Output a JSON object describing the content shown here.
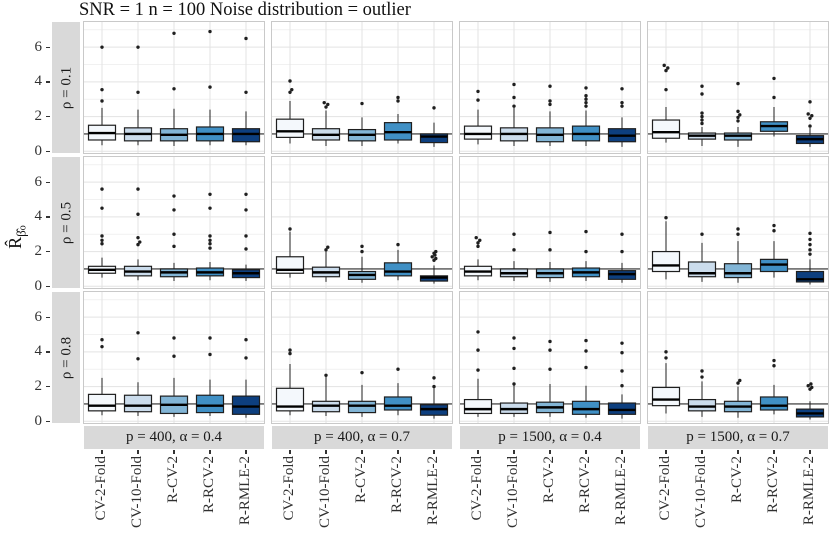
{
  "figure": {
    "title": "SNR = 1 n = 100 Noise distribution = outlier",
    "ylabel": {
      "base": "R̂",
      "sub_beta": "β̂",
      "sub_o": "o"
    }
  },
  "chart_data": {
    "type": "boxplot",
    "title": "SNR = 1 n = 100 Noise distribution = outlier",
    "ylabel": "R̂_β̂o",
    "facet_rows": [
      "ρ = 0.1",
      "ρ = 0.5",
      "ρ = 0.8"
    ],
    "facet_cols": [
      "p = 400, α = 0.4",
      "p = 400, α = 0.7",
      "p = 1500, α = 0.4",
      "p = 1500, α = 0.7"
    ],
    "categories": [
      "CV-2-Fold",
      "CV-10-Fold",
      "R-CV-2",
      "R-RCV-2",
      "R-RMLE-2"
    ],
    "yticks": [
      0,
      2,
      4,
      6
    ],
    "y_minor": [
      1,
      3,
      5,
      7
    ],
    "ylim": [
      -0.1,
      7.45
    ],
    "reference_line": 1,
    "legend": "none",
    "grid": true,
    "box_fill_colors": [
      "#F4F8FC",
      "#CBDCEC",
      "#82B5D6",
      "#4090C5",
      "#0D3F7F"
    ],
    "colors": {
      "strip_bg": "#D9D9D9",
      "grid_major": "#E3E3E3",
      "grid_minor": "#F1F1F1",
      "panel_border": "#C9C9C9",
      "box_stroke": "#1F1F1F",
      "ref_line": "#2B2B2B"
    },
    "panels": [
      {
        "row": "ρ = 0.1",
        "col": "p = 400, α = 0.4",
        "boxes": [
          {
            "whisker_low": 0.35,
            "q1": 0.65,
            "median": 1.05,
            "q3": 1.5,
            "whisker_high": 2.5,
            "outliers": [
              2.9,
              3.55,
              6.0
            ]
          },
          {
            "whisker_low": 0.35,
            "q1": 0.6,
            "median": 1.0,
            "q3": 1.35,
            "whisker_high": 2.4,
            "outliers": [
              3.4,
              6.0
            ]
          },
          {
            "whisker_low": 0.3,
            "q1": 0.6,
            "median": 0.95,
            "q3": 1.3,
            "whisker_high": 2.45,
            "outliers": [
              3.6,
              6.8
            ]
          },
          {
            "whisker_low": 0.35,
            "q1": 0.6,
            "median": 1.0,
            "q3": 1.4,
            "whisker_high": 2.4,
            "outliers": [
              3.7,
              6.9
            ]
          },
          {
            "whisker_low": 0.35,
            "q1": 0.55,
            "median": 1.0,
            "q3": 1.3,
            "whisker_high": 2.3,
            "outliers": [
              3.4,
              6.5
            ]
          }
        ]
      },
      {
        "row": "ρ = 0.1",
        "col": "p = 400, α = 0.7",
        "boxes": [
          {
            "whisker_low": 0.45,
            "q1": 0.8,
            "median": 1.15,
            "q3": 1.85,
            "whisker_high": 2.9,
            "outliers": [
              3.4,
              3.55,
              4.05
            ]
          },
          {
            "whisker_low": 0.3,
            "q1": 0.65,
            "median": 0.95,
            "q3": 1.3,
            "whisker_high": 2.35,
            "outliers": [
              2.55,
              2.7,
              2.8
            ]
          },
          {
            "whisker_low": 0.3,
            "q1": 0.6,
            "median": 0.95,
            "q3": 1.25,
            "whisker_high": 1.95,
            "outliers": [
              2.75
            ]
          },
          {
            "whisker_low": 0.45,
            "q1": 0.65,
            "median": 1.1,
            "q3": 1.65,
            "whisker_high": 2.15,
            "outliers": [
              2.9,
              3.1
            ]
          },
          {
            "whisker_low": 0.25,
            "q1": 0.5,
            "median": 0.85,
            "q3": 1.0,
            "whisker_high": 1.65,
            "outliers": [
              2.5
            ]
          }
        ]
      },
      {
        "row": "ρ = 0.1",
        "col": "p = 1500, α = 0.4",
        "boxes": [
          {
            "whisker_low": 0.4,
            "q1": 0.7,
            "median": 1.0,
            "q3": 1.45,
            "whisker_high": 2.4,
            "outliers": [
              2.95,
              3.45
            ]
          },
          {
            "whisker_low": 0.3,
            "q1": 0.6,
            "median": 1.0,
            "q3": 1.35,
            "whisker_high": 2.5,
            "outliers": [
              2.6,
              3.1,
              3.85
            ]
          },
          {
            "whisker_low": 0.3,
            "q1": 0.55,
            "median": 0.95,
            "q3": 1.35,
            "whisker_high": 2.3,
            "outliers": [
              2.7,
              2.9,
              3.75
            ]
          },
          {
            "whisker_low": 0.3,
            "q1": 0.6,
            "median": 1.0,
            "q3": 1.45,
            "whisker_high": 2.35,
            "outliers": [
              2.6,
              2.8,
              3.0,
              3.2,
              3.65
            ]
          },
          {
            "whisker_low": 0.25,
            "q1": 0.55,
            "median": 0.9,
            "q3": 1.3,
            "whisker_high": 1.95,
            "outliers": [
              2.6,
              2.8,
              3.6
            ]
          }
        ]
      },
      {
        "row": "ρ = 0.1",
        "col": "p = 1500, α = 0.7",
        "boxes": [
          {
            "whisker_low": 0.5,
            "q1": 0.75,
            "median": 1.1,
            "q3": 1.8,
            "whisker_high": 2.55,
            "outliers": [
              3.55,
              4.65,
              4.8,
              4.95
            ]
          },
          {
            "whisker_low": 0.3,
            "q1": 0.7,
            "median": 0.9,
            "q3": 1.05,
            "whisker_high": 1.4,
            "outliers": [
              1.6,
              1.8,
              2.0,
              2.2,
              3.3,
              3.75
            ]
          },
          {
            "whisker_low": 0.25,
            "q1": 0.65,
            "median": 0.9,
            "q3": 1.05,
            "whisker_high": 1.4,
            "outliers": [
              1.75,
              1.95,
              2.1,
              2.3,
              3.9
            ]
          },
          {
            "whisker_low": 0.85,
            "q1": 1.15,
            "median": 1.45,
            "q3": 1.7,
            "whisker_high": 2.55,
            "outliers": [
              3.1,
              4.2
            ]
          },
          {
            "whisker_low": 0.25,
            "q1": 0.45,
            "median": 0.7,
            "q3": 0.9,
            "whisker_high": 1.35,
            "outliers": [
              1.45,
              1.9,
              2.05,
              2.15,
              2.85
            ]
          }
        ]
      },
      {
        "row": "ρ = 0.5",
        "col": "p = 400, α = 0.4",
        "boxes": [
          {
            "whisker_low": 0.5,
            "q1": 0.75,
            "median": 0.95,
            "q3": 1.15,
            "whisker_high": 1.65,
            "outliers": [
              2.45,
              2.65,
              2.9,
              4.5,
              5.6
            ]
          },
          {
            "whisker_low": 0.35,
            "q1": 0.6,
            "median": 0.85,
            "q3": 1.15,
            "whisker_high": 1.55,
            "outliers": [
              2.4,
              2.55,
              2.8,
              4.15,
              5.6
            ]
          },
          {
            "whisker_low": 0.3,
            "q1": 0.55,
            "median": 0.8,
            "q3": 1.0,
            "whisker_high": 1.35,
            "outliers": [
              2.3,
              3.0,
              4.4,
              5.2
            ]
          },
          {
            "whisker_low": 0.35,
            "q1": 0.6,
            "median": 0.8,
            "q3": 1.05,
            "whisker_high": 1.4,
            "outliers": [
              2.2,
              2.45,
              2.65,
              2.9,
              4.5,
              5.3
            ]
          },
          {
            "whisker_low": 0.3,
            "q1": 0.5,
            "median": 0.75,
            "q3": 0.95,
            "whisker_high": 1.25,
            "outliers": [
              2.15,
              2.9,
              4.4,
              5.3
            ]
          }
        ]
      },
      {
        "row": "ρ = 0.5",
        "col": "p = 400, α = 0.7",
        "boxes": [
          {
            "whisker_low": 0.5,
            "q1": 0.75,
            "median": 0.95,
            "q3": 1.7,
            "whisker_high": 3.15,
            "outliers": [
              3.3
            ]
          },
          {
            "whisker_low": 0.25,
            "q1": 0.55,
            "median": 0.8,
            "q3": 1.1,
            "whisker_high": 2.0,
            "outliers": [
              2.1,
              2.25
            ]
          },
          {
            "whisker_low": 0.2,
            "q1": 0.4,
            "median": 0.65,
            "q3": 0.85,
            "whisker_high": 1.7,
            "outliers": [
              2.0,
              2.3
            ]
          },
          {
            "whisker_low": 0.35,
            "q1": 0.6,
            "median": 0.85,
            "q3": 1.35,
            "whisker_high": 2.1,
            "outliers": [
              2.4
            ]
          },
          {
            "whisker_low": 0.15,
            "q1": 0.3,
            "median": 0.5,
            "q3": 0.6,
            "whisker_high": 1.2,
            "outliers": [
              1.5,
              1.6,
              1.7,
              1.8,
              1.9,
              2.0
            ]
          }
        ]
      },
      {
        "row": "ρ = 0.5",
        "col": "p = 1500, α = 0.4",
        "boxes": [
          {
            "whisker_low": 0.35,
            "q1": 0.6,
            "median": 0.85,
            "q3": 1.15,
            "whisker_high": 1.55,
            "outliers": [
              2.3,
              2.5,
              2.65,
              2.8
            ]
          },
          {
            "whisker_low": 0.3,
            "q1": 0.55,
            "median": 0.75,
            "q3": 1.0,
            "whisker_high": 1.45,
            "outliers": [
              2.1,
              3.0
            ]
          },
          {
            "whisker_low": 0.25,
            "q1": 0.5,
            "median": 0.75,
            "q3": 1.0,
            "whisker_high": 1.4,
            "outliers": [
              2.1,
              3.1
            ]
          },
          {
            "whisker_low": 0.3,
            "q1": 0.55,
            "median": 0.8,
            "q3": 1.05,
            "whisker_high": 1.45,
            "outliers": [
              2.0,
              3.15
            ]
          },
          {
            "whisker_low": 0.2,
            "q1": 0.4,
            "median": 0.7,
            "q3": 0.9,
            "whisker_high": 1.35,
            "outliers": [
              2.0,
              3.0
            ]
          }
        ]
      },
      {
        "row": "ρ = 0.5",
        "col": "p = 1500, α = 0.7",
        "boxes": [
          {
            "whisker_low": 0.4,
            "q1": 0.85,
            "median": 1.2,
            "q3": 2.0,
            "whisker_high": 3.75,
            "outliers": [
              3.95
            ]
          },
          {
            "whisker_low": 0.25,
            "q1": 0.55,
            "median": 0.75,
            "q3": 1.4,
            "whisker_high": 2.5,
            "outliers": [
              3.0
            ]
          },
          {
            "whisker_low": 0.2,
            "q1": 0.5,
            "median": 0.75,
            "q3": 1.3,
            "whisker_high": 2.6,
            "outliers": [
              3.0,
              3.3
            ]
          },
          {
            "whisker_low": 0.5,
            "q1": 0.85,
            "median": 1.25,
            "q3": 1.55,
            "whisker_high": 2.6,
            "outliers": [
              3.2,
              3.5
            ]
          },
          {
            "whisker_low": 0.1,
            "q1": 0.25,
            "median": 0.4,
            "q3": 0.85,
            "whisker_high": 1.55,
            "outliers": [
              1.85,
              2.1,
              2.4,
              2.7,
              3.05
            ]
          }
        ]
      },
      {
        "row": "ρ = 0.8",
        "col": "p = 400, α = 0.4",
        "boxes": [
          {
            "whisker_low": 0.35,
            "q1": 0.6,
            "median": 0.9,
            "q3": 1.55,
            "whisker_high": 2.5,
            "outliers": [
              4.3,
              4.7
            ]
          },
          {
            "whisker_low": 0.3,
            "q1": 0.55,
            "median": 0.9,
            "q3": 1.5,
            "whisker_high": 2.25,
            "outliers": [
              3.6,
              5.1
            ]
          },
          {
            "whisker_low": 0.25,
            "q1": 0.45,
            "median": 0.95,
            "q3": 1.45,
            "whisker_high": 2.5,
            "outliers": [
              3.75,
              4.8
            ]
          },
          {
            "whisker_low": 0.3,
            "q1": 0.5,
            "median": 0.9,
            "q3": 1.5,
            "whisker_high": 2.4,
            "outliers": [
              3.85,
              4.8
            ]
          },
          {
            "whisker_low": 0.2,
            "q1": 0.4,
            "median": 0.85,
            "q3": 1.45,
            "whisker_high": 2.4,
            "outliers": [
              3.65,
              4.7
            ]
          }
        ]
      },
      {
        "row": "ρ = 0.8",
        "col": "p = 400, α = 0.7",
        "boxes": [
          {
            "whisker_low": 0.35,
            "q1": 0.6,
            "median": 0.85,
            "q3": 1.9,
            "whisker_high": 3.3,
            "outliers": [
              3.9,
              4.1
            ]
          },
          {
            "whisker_low": 0.3,
            "q1": 0.55,
            "median": 0.9,
            "q3": 1.15,
            "whisker_high": 2.55,
            "outliers": [
              2.65
            ]
          },
          {
            "whisker_low": 0.25,
            "q1": 0.5,
            "median": 0.9,
            "q3": 1.15,
            "whisker_high": 2.1,
            "outliers": [
              2.8
            ]
          },
          {
            "whisker_low": 0.35,
            "q1": 0.65,
            "median": 0.9,
            "q3": 1.4,
            "whisker_high": 2.2,
            "outliers": [
              3.0
            ]
          },
          {
            "whisker_low": 0.15,
            "q1": 0.35,
            "median": 0.7,
            "q3": 0.95,
            "whisker_high": 1.9,
            "outliers": [
              2.0,
              2.5
            ]
          }
        ]
      },
      {
        "row": "ρ = 0.8",
        "col": "p = 1500, α = 0.4",
        "boxes": [
          {
            "whisker_low": 0.25,
            "q1": 0.45,
            "median": 0.7,
            "q3": 1.25,
            "whisker_high": 2.45,
            "outliers": [
              2.95,
              4.1,
              5.15
            ]
          },
          {
            "whisker_low": 0.25,
            "q1": 0.45,
            "median": 0.7,
            "q3": 1.05,
            "whisker_high": 2.1,
            "outliers": [
              2.15,
              3.05,
              4.2,
              4.8
            ]
          },
          {
            "whisker_low": 0.25,
            "q1": 0.5,
            "median": 0.8,
            "q3": 1.1,
            "whisker_high": 2.15,
            "outliers": [
              3.0,
              4.1,
              4.6
            ]
          },
          {
            "whisker_low": 0.2,
            "q1": 0.4,
            "median": 0.7,
            "q3": 1.15,
            "whisker_high": 2.05,
            "outliers": [
              3.1,
              4.05,
              4.65
            ]
          },
          {
            "whisker_low": 0.15,
            "q1": 0.4,
            "median": 0.65,
            "q3": 1.05,
            "whisker_high": 1.55,
            "outliers": [
              2.05,
              2.9,
              3.95,
              4.5
            ]
          }
        ]
      },
      {
        "row": "ρ = 0.8",
        "col": "p = 1500, α = 0.7",
        "boxes": [
          {
            "whisker_low": 0.45,
            "q1": 0.9,
            "median": 1.25,
            "q3": 1.95,
            "whisker_high": 3.35,
            "outliers": [
              3.65,
              4.0
            ]
          },
          {
            "whisker_low": 0.25,
            "q1": 0.6,
            "median": 0.85,
            "q3": 1.25,
            "whisker_high": 2.3,
            "outliers": [
              2.55,
              2.9
            ]
          },
          {
            "whisker_low": 0.2,
            "q1": 0.55,
            "median": 0.85,
            "q3": 1.15,
            "whisker_high": 2.0,
            "outliers": [
              2.2,
              2.35
            ]
          },
          {
            "whisker_low": 0.4,
            "q1": 0.65,
            "median": 0.9,
            "q3": 1.4,
            "whisker_high": 2.1,
            "outliers": [
              3.2,
              3.5
            ]
          },
          {
            "whisker_low": 0.1,
            "q1": 0.25,
            "median": 0.45,
            "q3": 0.7,
            "whisker_high": 1.15,
            "outliers": [
              1.85,
              1.95,
              2.05,
              2.15
            ]
          }
        ]
      }
    ]
  }
}
